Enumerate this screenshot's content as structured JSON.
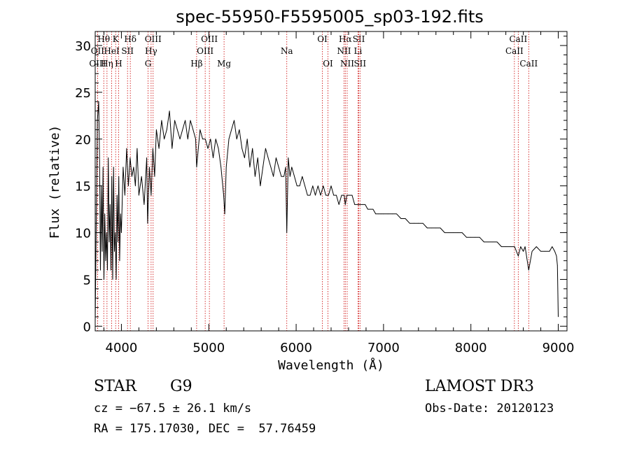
{
  "chart_data": {
    "type": "line",
    "title": "spec-55950-F5595005_sp03-192.fits",
    "xlabel": "Wavelength (Å)",
    "ylabel": "Flux (relative)",
    "xlim": [
      3700,
      9100
    ],
    "ylim": [
      -0.5,
      31.5
    ],
    "x_ticks": [
      4000,
      5000,
      6000,
      7000,
      8000,
      9000
    ],
    "y_ticks": [
      0,
      5,
      10,
      15,
      20,
      25,
      30
    ],
    "series": [
      {
        "name": "flux",
        "x": [
          3700,
          3715,
          3725,
          3740,
          3750,
          3760,
          3770,
          3780,
          3790,
          3800,
          3810,
          3820,
          3830,
          3840,
          3850,
          3860,
          3870,
          3880,
          3890,
          3900,
          3910,
          3920,
          3930,
          3940,
          3950,
          3960,
          3970,
          3980,
          3990,
          4000,
          4020,
          4040,
          4060,
          4080,
          4100,
          4120,
          4140,
          4160,
          4180,
          4200,
          4230,
          4260,
          4290,
          4300,
          4320,
          4340,
          4360,
          4380,
          4400,
          4430,
          4460,
          4490,
          4520,
          4550,
          4580,
          4610,
          4640,
          4670,
          4700,
          4730,
          4760,
          4790,
          4820,
          4850,
          4861,
          4880,
          4900,
          4930,
          4960,
          4990,
          5020,
          5050,
          5080,
          5110,
          5140,
          5170,
          5183,
          5200,
          5230,
          5260,
          5290,
          5320,
          5350,
          5380,
          5410,
          5440,
          5470,
          5500,
          5530,
          5560,
          5590,
          5620,
          5650,
          5680,
          5710,
          5740,
          5770,
          5800,
          5830,
          5860,
          5880,
          5893,
          5910,
          5930,
          5950,
          5980,
          6010,
          6040,
          6070,
          6100,
          6130,
          6160,
          6190,
          6220,
          6250,
          6280,
          6310,
          6340,
          6370,
          6400,
          6430,
          6460,
          6490,
          6520,
          6550,
          6563,
          6580,
          6610,
          6640,
          6670,
          6700,
          6730,
          6760,
          6790,
          6820,
          6850,
          6880,
          6910,
          6940,
          6970,
          7000,
          7050,
          7100,
          7150,
          7200,
          7250,
          7300,
          7350,
          7400,
          7450,
          7500,
          7550,
          7600,
          7650,
          7700,
          7750,
          7800,
          7850,
          7900,
          7950,
          8000,
          8050,
          8100,
          8150,
          8200,
          8250,
          8300,
          8350,
          8400,
          8450,
          8500,
          8542,
          8570,
          8600,
          8620,
          8662,
          8700,
          8750,
          8800,
          8850,
          8900,
          8930,
          8960,
          8980,
          8990,
          9000
        ],
        "y": [
          0.5,
          14,
          22,
          24,
          18,
          6,
          15,
          8,
          17,
          5,
          12,
          7,
          10,
          6,
          18,
          9,
          13,
          6,
          16,
          5,
          17,
          8,
          10,
          5,
          14,
          9,
          16,
          7,
          12,
          10,
          17,
          14,
          19,
          15,
          18,
          16,
          17,
          15,
          19,
          14,
          16,
          13,
          18,
          11,
          17,
          14,
          19,
          16,
          21,
          19,
          22,
          20,
          21,
          23,
          19,
          22,
          21,
          20,
          21,
          22,
          20,
          22,
          21,
          20,
          17,
          19,
          21,
          20,
          20,
          19,
          20,
          18,
          20,
          19,
          17,
          14,
          12,
          17,
          20,
          21,
          22,
          20,
          21,
          19,
          18,
          20,
          17,
          19,
          16,
          18,
          15,
          17,
          19,
          18,
          17,
          16,
          18,
          17,
          16,
          16,
          17,
          10,
          18,
          16,
          17,
          16,
          15,
          15,
          16,
          15,
          14,
          14,
          15,
          14,
          15,
          14,
          15,
          14,
          14,
          15,
          14,
          14,
          13,
          14,
          14,
          13,
          14,
          14,
          14,
          13,
          13,
          13,
          13,
          13,
          12.5,
          12.5,
          12.5,
          12,
          12,
          12,
          12,
          12,
          12,
          12,
          11.5,
          11.5,
          11,
          11,
          11,
          11,
          10.5,
          10.5,
          10.5,
          10.5,
          10,
          10,
          10,
          10,
          10,
          9.5,
          9.5,
          9.5,
          9.5,
          9,
          9,
          9,
          9,
          8.5,
          8.5,
          8.5,
          8.5,
          7.5,
          8.5,
          8,
          8.5,
          6,
          8,
          8.5,
          8,
          8,
          8,
          8.5,
          8,
          7.5,
          6.5,
          1
        ]
      }
    ],
    "line_markers": [
      {
        "label": "Hθ",
        "wavelength": 3798,
        "row": 0
      },
      {
        "label": "OII",
        "wavelength": 3727,
        "row": 1
      },
      {
        "label": "OIII",
        "wavelength": 3727,
        "row": 2
      },
      {
        "label": "Hη",
        "wavelength": 3835,
        "row": 2
      },
      {
        "label": "K",
        "wavelength": 3934,
        "row": 0
      },
      {
        "label": "HeI",
        "wavelength": 3889,
        "row": 1
      },
      {
        "label": "H",
        "wavelength": 3968,
        "row": 2
      },
      {
        "label": "Hδ",
        "wavelength": 4102,
        "row": 0
      },
      {
        "label": "SII",
        "wavelength": 4070,
        "row": 1
      },
      {
        "label": "OIII",
        "wavelength": 4363,
        "row": 0
      },
      {
        "label": "Hγ",
        "wavelength": 4340,
        "row": 1
      },
      {
        "label": "G",
        "wavelength": 4305,
        "row": 2
      },
      {
        "label": "OIII",
        "wavelength": 5007,
        "row": 0
      },
      {
        "label": "OIII",
        "wavelength": 4959,
        "row": 1
      },
      {
        "label": "Hβ",
        "wavelength": 4861,
        "row": 2
      },
      {
        "label": "Mg",
        "wavelength": 5175,
        "row": 2
      },
      {
        "label": "Na",
        "wavelength": 5893,
        "row": 1
      },
      {
        "label": "OI",
        "wavelength": 6300,
        "row": 0
      },
      {
        "label": "OI",
        "wavelength": 6364,
        "row": 2
      },
      {
        "label": "Hα",
        "wavelength": 6563,
        "row": 0
      },
      {
        "label": "NII",
        "wavelength": 6548,
        "row": 1
      },
      {
        "label": "NII",
        "wavelength": 6584,
        "row": 2
      },
      {
        "label": "SII",
        "wavelength": 6717,
        "row": 0
      },
      {
        "label": "Li",
        "wavelength": 6708,
        "row": 1
      },
      {
        "label": "SII",
        "wavelength": 6731,
        "row": 2
      },
      {
        "label": "CaII",
        "wavelength": 8542,
        "row": 0
      },
      {
        "label": "CaII",
        "wavelength": 8498,
        "row": 1
      },
      {
        "label": "CaII",
        "wavelength": 8662,
        "row": 2
      }
    ]
  },
  "info": {
    "object_class": "STAR",
    "subclass": "G9",
    "survey": "LAMOST DR3",
    "cz": "cz = −67.5 ± 26.1 km/s",
    "obs_date": "Obs-Date: 20120123",
    "coords": "RA = 175.17030, DEC =  57.76459"
  },
  "colors": {
    "spectrum": "#000000",
    "marker_line": "#cc0000",
    "background": "#ffffff"
  }
}
